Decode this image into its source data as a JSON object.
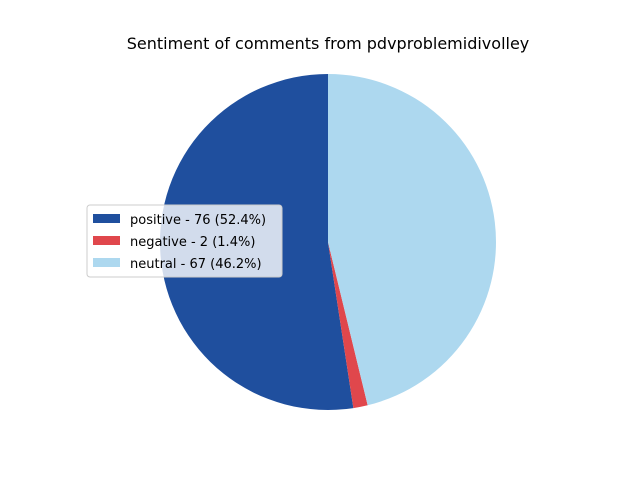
{
  "chart_data": {
    "type": "pie",
    "title": "Sentiment of comments from pdvproblemidivolley",
    "legend_placement": "center-left",
    "start_angle_deg": 90,
    "direction": "counterclockwise",
    "slices": [
      {
        "label": "positive - 76 (52.4%)",
        "value": 76,
        "percent": 52.4,
        "color": "#1f4f9e"
      },
      {
        "label": "negative - 2 (1.4%)",
        "value": 2,
        "percent": 1.4,
        "color": "#e0474c"
      },
      {
        "label": "neutral - 67 (46.2%)",
        "value": 67,
        "percent": 46.2,
        "color": "#add8ef"
      }
    ]
  }
}
